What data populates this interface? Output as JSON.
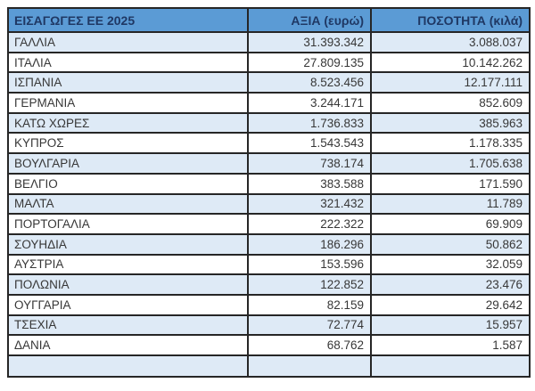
{
  "table": {
    "headers": [
      "ΕΙΣΑΓΩΓΕΣ ΕΕ 2025",
      "ΑΞΙΑ (ευρώ)",
      "ΠΟΣΟΤΗΤΑ (κιλά)"
    ],
    "rows": [
      {
        "country": "ΓΑΛΛΙΑ",
        "value": "31.393.342",
        "quantity": "3.088.037"
      },
      {
        "country": "ΙΤΑΛΙΑ",
        "value": "27.809.135",
        "quantity": "10.142.262"
      },
      {
        "country": "ΙΣΠΑΝΙΑ",
        "value": "8.523.456",
        "quantity": "12.177.111"
      },
      {
        "country": "ΓΕΡΜΑΝΙΑ",
        "value": "3.244.171",
        "quantity": "852.609"
      },
      {
        "country": "ΚΑΤΩ ΧΩΡΕΣ",
        "value": "1.736.833",
        "quantity": "385.963"
      },
      {
        "country": "ΚΥΠΡΟΣ",
        "value": "1.543.543",
        "quantity": "1.178.335"
      },
      {
        "country": "ΒΟΥΛΓΑΡΙΑ",
        "value": "738.174",
        "quantity": "1.705.638"
      },
      {
        "country": "ΒΕΛΓΙΟ",
        "value": "383.588",
        "quantity": "171.590"
      },
      {
        "country": "ΜΑΛΤΑ",
        "value": "321.432",
        "quantity": "11.789"
      },
      {
        "country": "ΠΟΡΤΟΓΑΛΙΑ",
        "value": "222.322",
        "quantity": "69.909"
      },
      {
        "country": "ΣΟΥΗΔΙΑ",
        "value": "186.296",
        "quantity": "50.862"
      },
      {
        "country": "ΑΥΣΤΡΙΑ",
        "value": "153.596",
        "quantity": "32.059"
      },
      {
        "country": "ΠΟΛΩΝΙΑ",
        "value": "122.852",
        "quantity": "23.476"
      },
      {
        "country": "ΟΥΓΓΑΡΙΑ",
        "value": "82.159",
        "quantity": "29.642"
      },
      {
        "country": "ΤΣΕΧΙΑ",
        "value": "72.774",
        "quantity": "15.957"
      },
      {
        "country": "ΔΑΝΙΑ",
        "value": "68.762",
        "quantity": "1.587"
      }
    ],
    "colors": {
      "header_bg": "#5b9bd5",
      "header_text": "#1f3864",
      "row_stripe": "#deeaf6",
      "row_plain": "#ffffff",
      "border": "#262626",
      "data_text": "#373737"
    }
  },
  "chart_data": {
    "type": "table",
    "title": "ΕΙΣΑΓΩΓΕΣ ΕΕ 2025",
    "columns": [
      "ΕΙΣΑΓΩΓΕΣ ΕΕ 2025",
      "ΑΞΙΑ (ευρώ)",
      "ΠΟΣΟΤΗΤΑ (κιλά)"
    ],
    "rows": [
      [
        "ΓΑΛΛΙΑ",
        "31.393.342",
        "3.088.037"
      ],
      [
        "ΙΤΑΛΙΑ",
        "27.809.135",
        "10.142.262"
      ],
      [
        "ΙΣΠΑΝΙΑ",
        "8.523.456",
        "12.177.111"
      ],
      [
        "ΓΕΡΜΑΝΙΑ",
        "3.244.171",
        "852.609"
      ],
      [
        "ΚΑΤΩ ΧΩΡΕΣ",
        "1.736.833",
        "385.963"
      ],
      [
        "ΚΥΠΡΟΣ",
        "1.543.543",
        "1.178.335"
      ],
      [
        "ΒΟΥΛΓΑΡΙΑ",
        "738.174",
        "1.705.638"
      ],
      [
        "ΒΕΛΓΙΟ",
        "383.588",
        "171.590"
      ],
      [
        "ΜΑΛΤΑ",
        "321.432",
        "11.789"
      ],
      [
        "ΠΟΡΤΟΓΑΛΙΑ",
        "222.322",
        "69.909"
      ],
      [
        "ΣΟΥΗΔΙΑ",
        "186.296",
        "50.862"
      ],
      [
        "ΑΥΣΤΡΙΑ",
        "153.596",
        "32.059"
      ],
      [
        "ΠΟΛΩΝΙΑ",
        "122.852",
        "23.476"
      ],
      [
        "ΟΥΓΓΑΡΙΑ",
        "82.159",
        "29.642"
      ],
      [
        "ΤΣΕΧΙΑ",
        "72.774",
        "15.957"
      ],
      [
        "ΔΑΝΙΑ",
        "68.762",
        "1.587"
      ]
    ],
    "values_numeric": {
      "value_eur": [
        31393342,
        27809135,
        8523456,
        3244171,
        1736833,
        1543543,
        738174,
        383588,
        321432,
        222322,
        186296,
        153596,
        122852,
        82159,
        72774,
        68762
      ],
      "quantity_kg": [
        3088037,
        10142262,
        12177111,
        852609,
        385963,
        1178335,
        1705638,
        171590,
        11789,
        69909,
        50862,
        32059,
        23476,
        29642,
        15957,
        1587
      ]
    }
  }
}
